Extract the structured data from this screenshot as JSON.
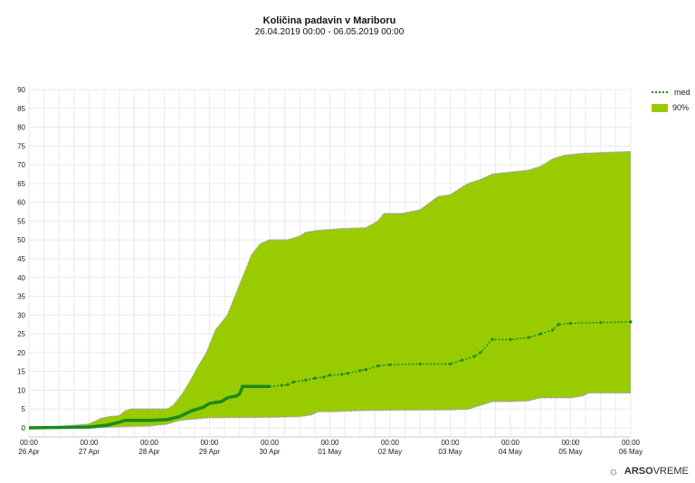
{
  "chart_data": {
    "type": "area",
    "title": "Količina padavin v Mariboru",
    "subtitle": "26.04.2019 00:00 - 06.05.2019 00:00",
    "xlabel": "",
    "ylabel": "",
    "ylim": [
      0,
      90
    ],
    "yticks": [
      0,
      5,
      10,
      15,
      20,
      25,
      30,
      35,
      40,
      45,
      50,
      55,
      60,
      65,
      70,
      75,
      80,
      85,
      90
    ],
    "xlim_days": [
      0,
      10
    ],
    "xticks": [
      {
        "time": "00:00",
        "date": "26 Apr"
      },
      {
        "time": "00:00",
        "date": "27 Apr"
      },
      {
        "time": "00:00",
        "date": "28 Apr"
      },
      {
        "time": "00:00",
        "date": "29 Apr"
      },
      {
        "time": "00:00",
        "date": "30 Apr"
      },
      {
        "time": "00:00",
        "date": "01 May"
      },
      {
        "time": "00:00",
        "date": "02 May"
      },
      {
        "time": "00:00",
        "date": "03 May"
      },
      {
        "time": "00:00",
        "date": "04 May"
      },
      {
        "time": "00:00",
        "date": "05 May"
      },
      {
        "time": "00:00",
        "date": "06 May"
      }
    ],
    "grid": true,
    "legend_position": "top-right",
    "legend": [
      {
        "label": "med",
        "color": "#1a8a1a"
      },
      {
        "label": "90%",
        "color": "#99cc00"
      }
    ],
    "band_upper": [
      [
        0,
        0
      ],
      [
        0.5,
        0.3
      ],
      [
        1,
        1
      ],
      [
        1.2,
        2.5
      ],
      [
        1.35,
        3
      ],
      [
        1.5,
        3.2
      ],
      [
        1.6,
        4.5
      ],
      [
        1.7,
        5
      ],
      [
        2.3,
        5
      ],
      [
        2.4,
        6
      ],
      [
        2.55,
        9
      ],
      [
        2.7,
        13
      ],
      [
        2.8,
        16
      ],
      [
        2.95,
        20
      ],
      [
        3.1,
        26
      ],
      [
        3.3,
        30
      ],
      [
        3.45,
        36
      ],
      [
        3.6,
        42
      ],
      [
        3.7,
        46
      ],
      [
        3.85,
        49
      ],
      [
        4,
        50
      ],
      [
        4.3,
        50
      ],
      [
        4.5,
        51
      ],
      [
        4.6,
        52
      ],
      [
        4.8,
        52.5
      ],
      [
        5.2,
        53
      ],
      [
        5.6,
        53.2
      ],
      [
        5.8,
        55
      ],
      [
        5.9,
        57
      ],
      [
        6.2,
        57
      ],
      [
        6.5,
        58
      ],
      [
        6.8,
        61.5
      ],
      [
        7,
        62
      ],
      [
        7.3,
        65
      ],
      [
        7.5,
        66
      ],
      [
        7.7,
        67.5
      ],
      [
        8,
        68
      ],
      [
        8.3,
        68.5
      ],
      [
        8.5,
        69.5
      ],
      [
        8.7,
        71.5
      ],
      [
        8.9,
        72.5
      ],
      [
        9.2,
        73
      ],
      [
        9.5,
        73.2
      ],
      [
        10,
        73.5
      ]
    ],
    "band_lower": [
      [
        0,
        0
      ],
      [
        1,
        0
      ],
      [
        1.5,
        0.3
      ],
      [
        2,
        0.5
      ],
      [
        2.3,
        1
      ],
      [
        2.5,
        2
      ],
      [
        2.7,
        2.3
      ],
      [
        3,
        2.7
      ],
      [
        4,
        2.8
      ],
      [
        4.5,
        3
      ],
      [
        4.7,
        3.5
      ],
      [
        4.8,
        4.3
      ],
      [
        5,
        4.3
      ],
      [
        5.5,
        4.6
      ],
      [
        6,
        4.7
      ],
      [
        7,
        4.8
      ],
      [
        7.3,
        5
      ],
      [
        7.5,
        6
      ],
      [
        7.7,
        7
      ],
      [
        8,
        7
      ],
      [
        8.3,
        7.2
      ],
      [
        8.5,
        8
      ],
      [
        9,
        8
      ],
      [
        9.2,
        8.5
      ],
      [
        9.3,
        9.3
      ],
      [
        10,
        9.3
      ]
    ],
    "median": [
      [
        0,
        0
      ],
      [
        1,
        0.2
      ],
      [
        1.3,
        0.7
      ],
      [
        1.5,
        1.5
      ],
      [
        1.6,
        2
      ],
      [
        2,
        2
      ],
      [
        2.3,
        2.2
      ],
      [
        2.5,
        3
      ],
      [
        2.7,
        4.5
      ],
      [
        2.9,
        5.5
      ],
      [
        3,
        6.5
      ],
      [
        3.2,
        7
      ],
      [
        3.3,
        8
      ],
      [
        3.45,
        8.5
      ],
      [
        3.5,
        9
      ],
      [
        3.55,
        11
      ],
      [
        4,
        11
      ],
      [
        4.2,
        11.3
      ],
      [
        4.3,
        11.5
      ],
      [
        4.4,
        12.2
      ],
      [
        4.6,
        12.7
      ],
      [
        4.75,
        13.2
      ],
      [
        4.9,
        13.5
      ],
      [
        5,
        14
      ],
      [
        5.2,
        14.2
      ],
      [
        5.3,
        14.5
      ],
      [
        5.5,
        15.2
      ],
      [
        5.6,
        15.5
      ],
      [
        5.8,
        16.5
      ],
      [
        6,
        16.8
      ],
      [
        6.5,
        17
      ],
      [
        7,
        17
      ],
      [
        7.2,
        18
      ],
      [
        7.4,
        19
      ],
      [
        7.5,
        20
      ],
      [
        7.7,
        23.5
      ],
      [
        8,
        23.5
      ],
      [
        8.3,
        24
      ],
      [
        8.5,
        25
      ],
      [
        8.7,
        26
      ],
      [
        8.8,
        27.5
      ],
      [
        9,
        27.8
      ],
      [
        9.5,
        28
      ],
      [
        10,
        28.2
      ]
    ],
    "median_observed_until_day": 4
  },
  "footer": {
    "brand_bold": "ARSO",
    "brand_light": "VREME"
  }
}
